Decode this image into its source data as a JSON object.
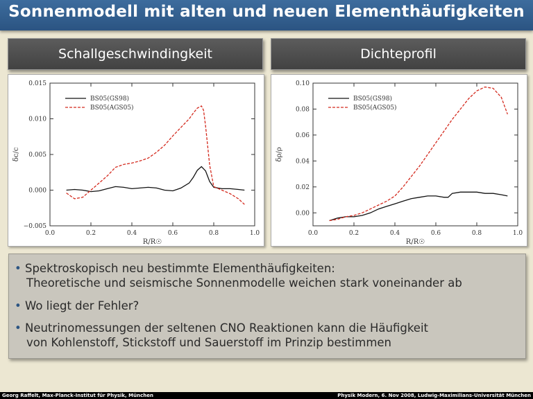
{
  "slide": {
    "title": "Sonnenmodell mit alten und neuen Elementhäufigkeiten",
    "left_header": "Schallgeschwindingkeit",
    "right_header": "Dichteprofil",
    "bullets": [
      {
        "line1": "Spektroskopisch neu bestimmte Elementhäufigkeiten:",
        "line2": "Theoretische und seismische Sonnenmodelle weichen stark voneinander ab"
      },
      {
        "line1": "Wo liegt der Fehler?",
        "line2": ""
      },
      {
        "line1": "Neutrinomessungen der seltenen CNO Reaktionen kann die Häufigkeit",
        "line2": "von Kohlenstoff, Stickstoff und Sauerstoff im Prinzip bestimmen"
      }
    ],
    "bullet_symbol": "•",
    "footer_left": "Georg Raffelt, Max-Planck-Institut für Physik, München",
    "footer_right": "Physik Modern, 6. Nov 2008, Ludwig-Maximilians-Universität München"
  },
  "colors": {
    "title_bar": "#2b5482",
    "series_gs98": "#111111",
    "series_ags05": "#d42a1e"
  },
  "chart_data": [
    {
      "type": "line",
      "title": "Schallgeschwindingkeit",
      "xlabel": "R/R☉",
      "ylabel": "δc/c",
      "xlim": [
        0.0,
        1.0
      ],
      "ylim": [
        -0.005,
        0.015
      ],
      "xticks": [
        "0.0",
        "0.2",
        "0.4",
        "0.6",
        "0.8",
        "1.0"
      ],
      "yticks": [
        "0.015",
        "0.010",
        "0.005",
        "0.000",
        "−0.005"
      ],
      "legend": "top-left",
      "series": [
        {
          "name": "BS05(GS98)",
          "style": "solid",
          "x": [
            0.08,
            0.12,
            0.16,
            0.2,
            0.24,
            0.28,
            0.32,
            0.36,
            0.4,
            0.44,
            0.48,
            0.52,
            0.56,
            0.6,
            0.64,
            0.68,
            0.7,
            0.72,
            0.74,
            0.76,
            0.78,
            0.8,
            0.84,
            0.88,
            0.92,
            0.95
          ],
          "y": [
            0.0,
            0.0001,
            0.0,
            -0.0002,
            -0.0001,
            0.0002,
            0.0005,
            0.0004,
            0.0002,
            0.0003,
            0.0004,
            0.0003,
            0.0,
            -0.0001,
            0.0003,
            0.001,
            0.0018,
            0.0028,
            0.0033,
            0.0027,
            0.0012,
            0.0004,
            0.0002,
            0.0002,
            0.0001,
            0.0
          ]
        },
        {
          "name": "BS05(AGS05)",
          "style": "dashed",
          "x": [
            0.08,
            0.12,
            0.16,
            0.2,
            0.24,
            0.28,
            0.32,
            0.36,
            0.4,
            0.44,
            0.48,
            0.52,
            0.56,
            0.6,
            0.64,
            0.68,
            0.7,
            0.72,
            0.74,
            0.75,
            0.76,
            0.78,
            0.8,
            0.84,
            0.88,
            0.92,
            0.95
          ],
          "y": [
            -0.0004,
            -0.0012,
            -0.001,
            0.0,
            0.001,
            0.002,
            0.0032,
            0.0036,
            0.0038,
            0.0041,
            0.0045,
            0.0053,
            0.0063,
            0.0076,
            0.0088,
            0.01,
            0.0108,
            0.0115,
            0.0118,
            0.0112,
            0.009,
            0.0035,
            0.0005,
            0.0,
            -0.0005,
            -0.0012,
            -0.002
          ]
        }
      ]
    },
    {
      "type": "line",
      "title": "Dichteprofil",
      "xlabel": "R/R☉",
      "ylabel": "δρ/ρ",
      "xlim": [
        0.0,
        1.0
      ],
      "ylim": [
        -0.01,
        0.1
      ],
      "xticks": [
        "0.0",
        "0.2",
        "0.4",
        "0.6",
        "0.8",
        "1.0"
      ],
      "yticks": [
        "0.10",
        "0.08",
        "0.06",
        "0.04",
        "0.02",
        "0.00"
      ],
      "legend": "top-left",
      "series": [
        {
          "name": "BS05(GS98)",
          "style": "solid",
          "x": [
            0.08,
            0.12,
            0.16,
            0.2,
            0.24,
            0.28,
            0.32,
            0.36,
            0.4,
            0.44,
            0.48,
            0.52,
            0.56,
            0.6,
            0.64,
            0.66,
            0.68,
            0.72,
            0.76,
            0.8,
            0.84,
            0.88,
            0.92,
            0.95
          ],
          "y": [
            -0.006,
            -0.004,
            -0.003,
            -0.003,
            -0.002,
            0.0,
            0.003,
            0.005,
            0.007,
            0.009,
            0.011,
            0.012,
            0.013,
            0.013,
            0.012,
            0.012,
            0.015,
            0.016,
            0.016,
            0.016,
            0.015,
            0.015,
            0.014,
            0.013
          ]
        },
        {
          "name": "BS05(AGS05)",
          "style": "dashed",
          "x": [
            0.08,
            0.12,
            0.16,
            0.2,
            0.24,
            0.28,
            0.32,
            0.36,
            0.4,
            0.44,
            0.48,
            0.52,
            0.56,
            0.6,
            0.64,
            0.68,
            0.72,
            0.76,
            0.8,
            0.84,
            0.88,
            0.92,
            0.95
          ],
          "y": [
            -0.006,
            -0.005,
            -0.003,
            -0.002,
            0.0,
            0.003,
            0.006,
            0.009,
            0.013,
            0.02,
            0.028,
            0.036,
            0.045,
            0.054,
            0.063,
            0.072,
            0.08,
            0.088,
            0.094,
            0.097,
            0.096,
            0.089,
            0.076
          ]
        }
      ]
    }
  ]
}
